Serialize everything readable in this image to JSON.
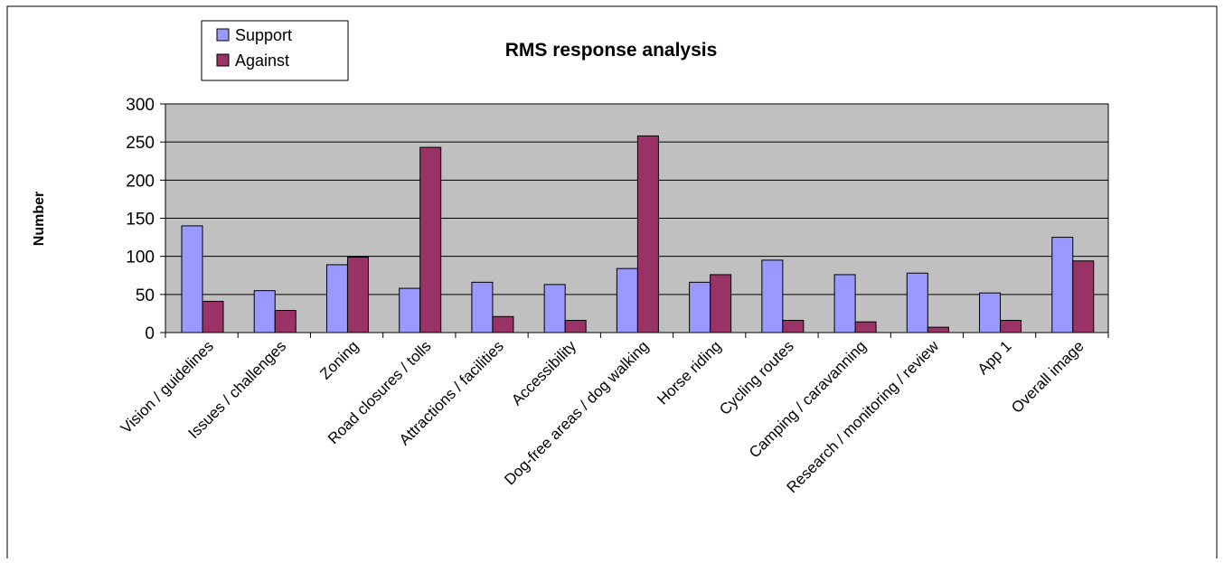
{
  "chart_data": {
    "type": "bar",
    "title": "RMS response analysis",
    "xlabel": "",
    "ylabel": "Number",
    "ylim": [
      0,
      300
    ],
    "yticks": [
      0,
      50,
      100,
      150,
      200,
      250,
      300
    ],
    "grid": true,
    "legend_position": "top-left",
    "categories": [
      "Vision / guidelines",
      "Issues / challenges",
      "Zoning",
      "Road closures / tolls",
      "Attractions / facilities",
      "Accessibility",
      "Dog-free areas / dog walking",
      "Horse riding",
      "Cycling routes",
      "Camping / caravanning",
      "Research / monitoring / review",
      "App 1",
      "Overall image"
    ],
    "series": [
      {
        "name": "Support",
        "color": "#9999ff",
        "values": [
          140,
          55,
          89,
          58,
          66,
          63,
          84,
          66,
          95,
          76,
          78,
          52,
          125
        ]
      },
      {
        "name": "Against",
        "color": "#993366",
        "values": [
          41,
          29,
          99,
          243,
          21,
          16,
          258,
          76,
          16,
          14,
          7,
          16,
          94
        ]
      }
    ]
  },
  "colors": {
    "plot_background": "#c0c0c0",
    "gridline": "#000000",
    "border": "#000000"
  }
}
